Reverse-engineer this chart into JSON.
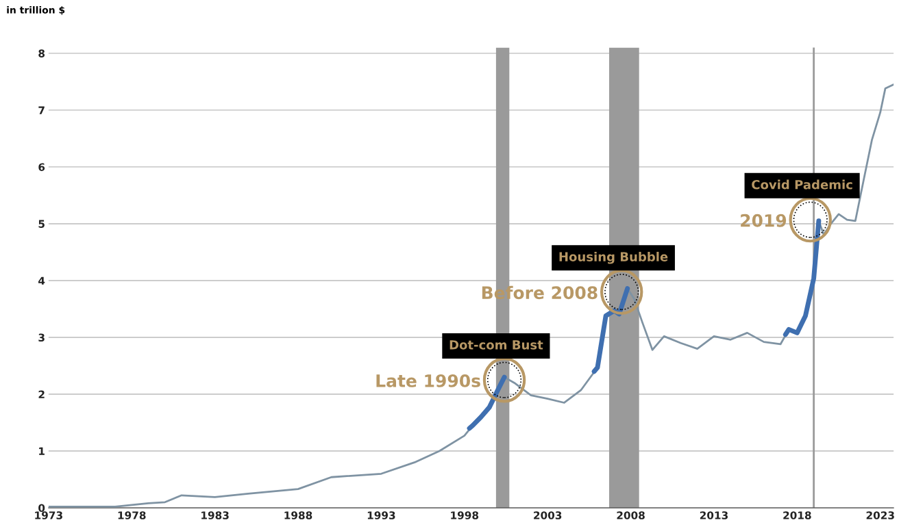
{
  "chart_data": {
    "type": "line",
    "ylabel": "in trillion $",
    "xlim": [
      1973,
      2023.8
    ],
    "ylim": [
      0,
      8.1
    ],
    "xticks": [
      1973,
      1978,
      1983,
      1988,
      1993,
      1998,
      2003,
      2008,
      2013,
      2018,
      2023
    ],
    "yticks": [
      0,
      1,
      2,
      3,
      4,
      5,
      6,
      7,
      8
    ],
    "grid": "y",
    "legend": false,
    "series": [
      {
        "color": "#7f93a3",
        "x": [
          1973,
          1975,
          1977,
          1978,
          1979,
          1980,
          1981,
          1983,
          1985,
          1988,
          1990,
          1993,
          1995,
          1996.5,
          1998,
          1998.5,
          1999,
          1999.5,
          2000,
          2000.4,
          2001,
          2002,
          2003,
          2004,
          2005,
          2006,
          2006.5,
          2007,
          2007.3,
          2007.8,
          2008.2,
          2008.7,
          2009.3,
          2010,
          2011,
          2012,
          2013,
          2014,
          2015,
          2016,
          2017,
          2017.5,
          2018,
          2018.5,
          2019,
          2019.3,
          2019.6,
          2020,
          2020.5,
          2021,
          2021.5,
          2022,
          2022.5,
          2023,
          2023.3,
          2023.8
        ],
        "values": [
          0.02,
          0.02,
          0.02,
          0.05,
          0.08,
          0.1,
          0.22,
          0.19,
          0.25,
          0.33,
          0.54,
          0.6,
          0.8,
          1.0,
          1.27,
          1.45,
          1.6,
          1.77,
          2.07,
          2.3,
          2.2,
          1.98,
          1.92,
          1.85,
          2.07,
          2.47,
          3.38,
          3.47,
          3.41,
          3.86,
          3.68,
          3.26,
          2.78,
          3.02,
          2.9,
          2.8,
          3.02,
          2.96,
          3.08,
          2.92,
          2.88,
          3.14,
          3.08,
          3.38,
          4.04,
          5.05,
          4.81,
          4.99,
          5.17,
          5.07,
          5.05,
          5.77,
          6.48,
          6.96,
          7.38,
          7.45
        ]
      },
      {
        "color": "#3f6fb0",
        "x": [
          1998.3,
          1998.5,
          1999,
          1999.5,
          2000,
          2000.4
        ],
        "values": [
          1.4,
          1.45,
          1.6,
          1.77,
          2.07,
          2.3
        ]
      },
      {
        "color": "#3f6fb0",
        "x": [
          2005.8,
          2006,
          2006.5,
          2007,
          2007.3,
          2007.8
        ],
        "values": [
          2.4,
          2.47,
          3.38,
          3.47,
          3.41,
          3.86
        ]
      },
      {
        "color": "#3f6fb0",
        "x": [
          2017.3,
          2017.5,
          2018,
          2018.5,
          2019,
          2019.3
        ],
        "values": [
          3.05,
          3.14,
          3.08,
          3.38,
          4.04,
          5.05
        ]
      }
    ],
    "bands": [
      {
        "axis": "x",
        "from": 1999.9,
        "to": 2000.7,
        "color": "#9a9a9a"
      },
      {
        "axis": "x",
        "from": 2006.7,
        "to": 2008.5,
        "color": "#9a9a9a"
      }
    ],
    "ref_lines": [
      {
        "axis": "x",
        "value": 2019,
        "color": "#9a9a9a"
      }
    ],
    "annotations": [
      "Dot-com Bust",
      {
        "text": "Late 1990s",
        "x": 2000.4,
        "y": 2.25
      },
      "Housing Bubble",
      {
        "text": "Before 2008",
        "x": 2007.45,
        "y": 3.8
      },
      "Covid Pademic",
      {
        "text": "2019",
        "x": 2018.8,
        "y": 5.07
      }
    ]
  }
}
